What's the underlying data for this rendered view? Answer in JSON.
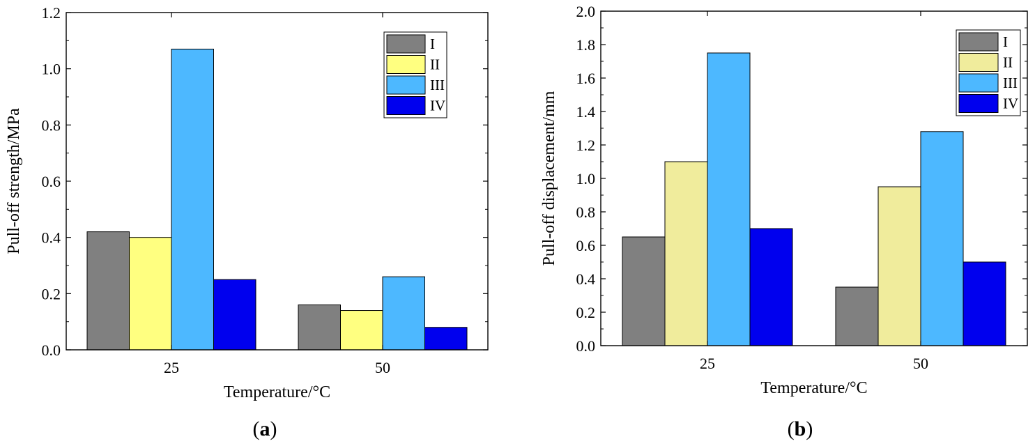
{
  "chart_data": [
    {
      "panel_label": "a",
      "type": "bar",
      "categories": [
        "25",
        "50"
      ],
      "xlabel": "Temperature/°C",
      "ylabel": "Pull-off strength/MPa",
      "ylim": [
        0,
        1.2
      ],
      "yticks": [
        "0.0",
        "0.2",
        "0.4",
        "0.6",
        "0.8",
        "1.0",
        "1.2"
      ],
      "legend_position": "top-right",
      "series": [
        {
          "name": "I",
          "color": "#808080",
          "values": [
            0.42,
            0.16
          ]
        },
        {
          "name": "II",
          "color": "#FFFF80",
          "values": [
            0.4,
            0.14
          ]
        },
        {
          "name": "III",
          "color": "#4DB8FF",
          "values": [
            1.07,
            0.26
          ]
        },
        {
          "name": "IV",
          "color": "#0000EE",
          "values": [
            0.25,
            0.08
          ]
        }
      ]
    },
    {
      "panel_label": "b",
      "type": "bar",
      "categories": [
        "25",
        "50"
      ],
      "xlabel": "Temperature/°C",
      "ylabel": "Pull-off displacement/mm",
      "ylim": [
        0,
        2.0
      ],
      "yticks": [
        "0.0",
        "0.2",
        "0.4",
        "0.6",
        "0.8",
        "1.0",
        "1.2",
        "1.4",
        "1.6",
        "1.8",
        "2.0"
      ],
      "legend_position": "top-right",
      "series": [
        {
          "name": "I",
          "color": "#808080",
          "values": [
            0.65,
            0.35
          ]
        },
        {
          "name": "II",
          "color": "#F0EC9C",
          "values": [
            1.1,
            0.95
          ]
        },
        {
          "name": "III",
          "color": "#4DB8FF",
          "values": [
            1.75,
            1.28
          ]
        },
        {
          "name": "IV",
          "color": "#0000EE",
          "values": [
            0.7,
            0.5
          ]
        }
      ]
    }
  ]
}
